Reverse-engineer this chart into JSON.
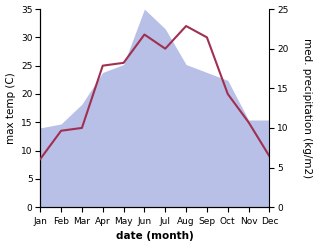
{
  "months": [
    "Jan",
    "Feb",
    "Mar",
    "Apr",
    "May",
    "Jun",
    "Jul",
    "Aug",
    "Sep",
    "Oct",
    "Nov",
    "Dec"
  ],
  "temperature": [
    8.5,
    13.5,
    14.0,
    25.0,
    25.5,
    30.5,
    28.0,
    32.0,
    30.0,
    20.0,
    15.0,
    9.0
  ],
  "precipitation": [
    10.0,
    10.5,
    13.0,
    17.0,
    18.0,
    25.0,
    22.5,
    18.0,
    17.0,
    16.0,
    11.0,
    11.0
  ],
  "temp_color": "#a03050",
  "precip_color": "#b8c0e8",
  "temp_ylim": [
    0,
    35
  ],
  "precip_ylim": [
    0,
    25
  ],
  "temp_yticks": [
    0,
    5,
    10,
    15,
    20,
    25,
    30,
    35
  ],
  "precip_yticks": [
    0,
    5,
    10,
    15,
    20,
    25
  ],
  "xlabel": "date (month)",
  "ylabel_left": "max temp (C)",
  "ylabel_right": "med. precipitation (kg/m2)",
  "bg_color": "#ffffff",
  "label_fontsize": 7.5,
  "tick_fontsize": 6.5
}
